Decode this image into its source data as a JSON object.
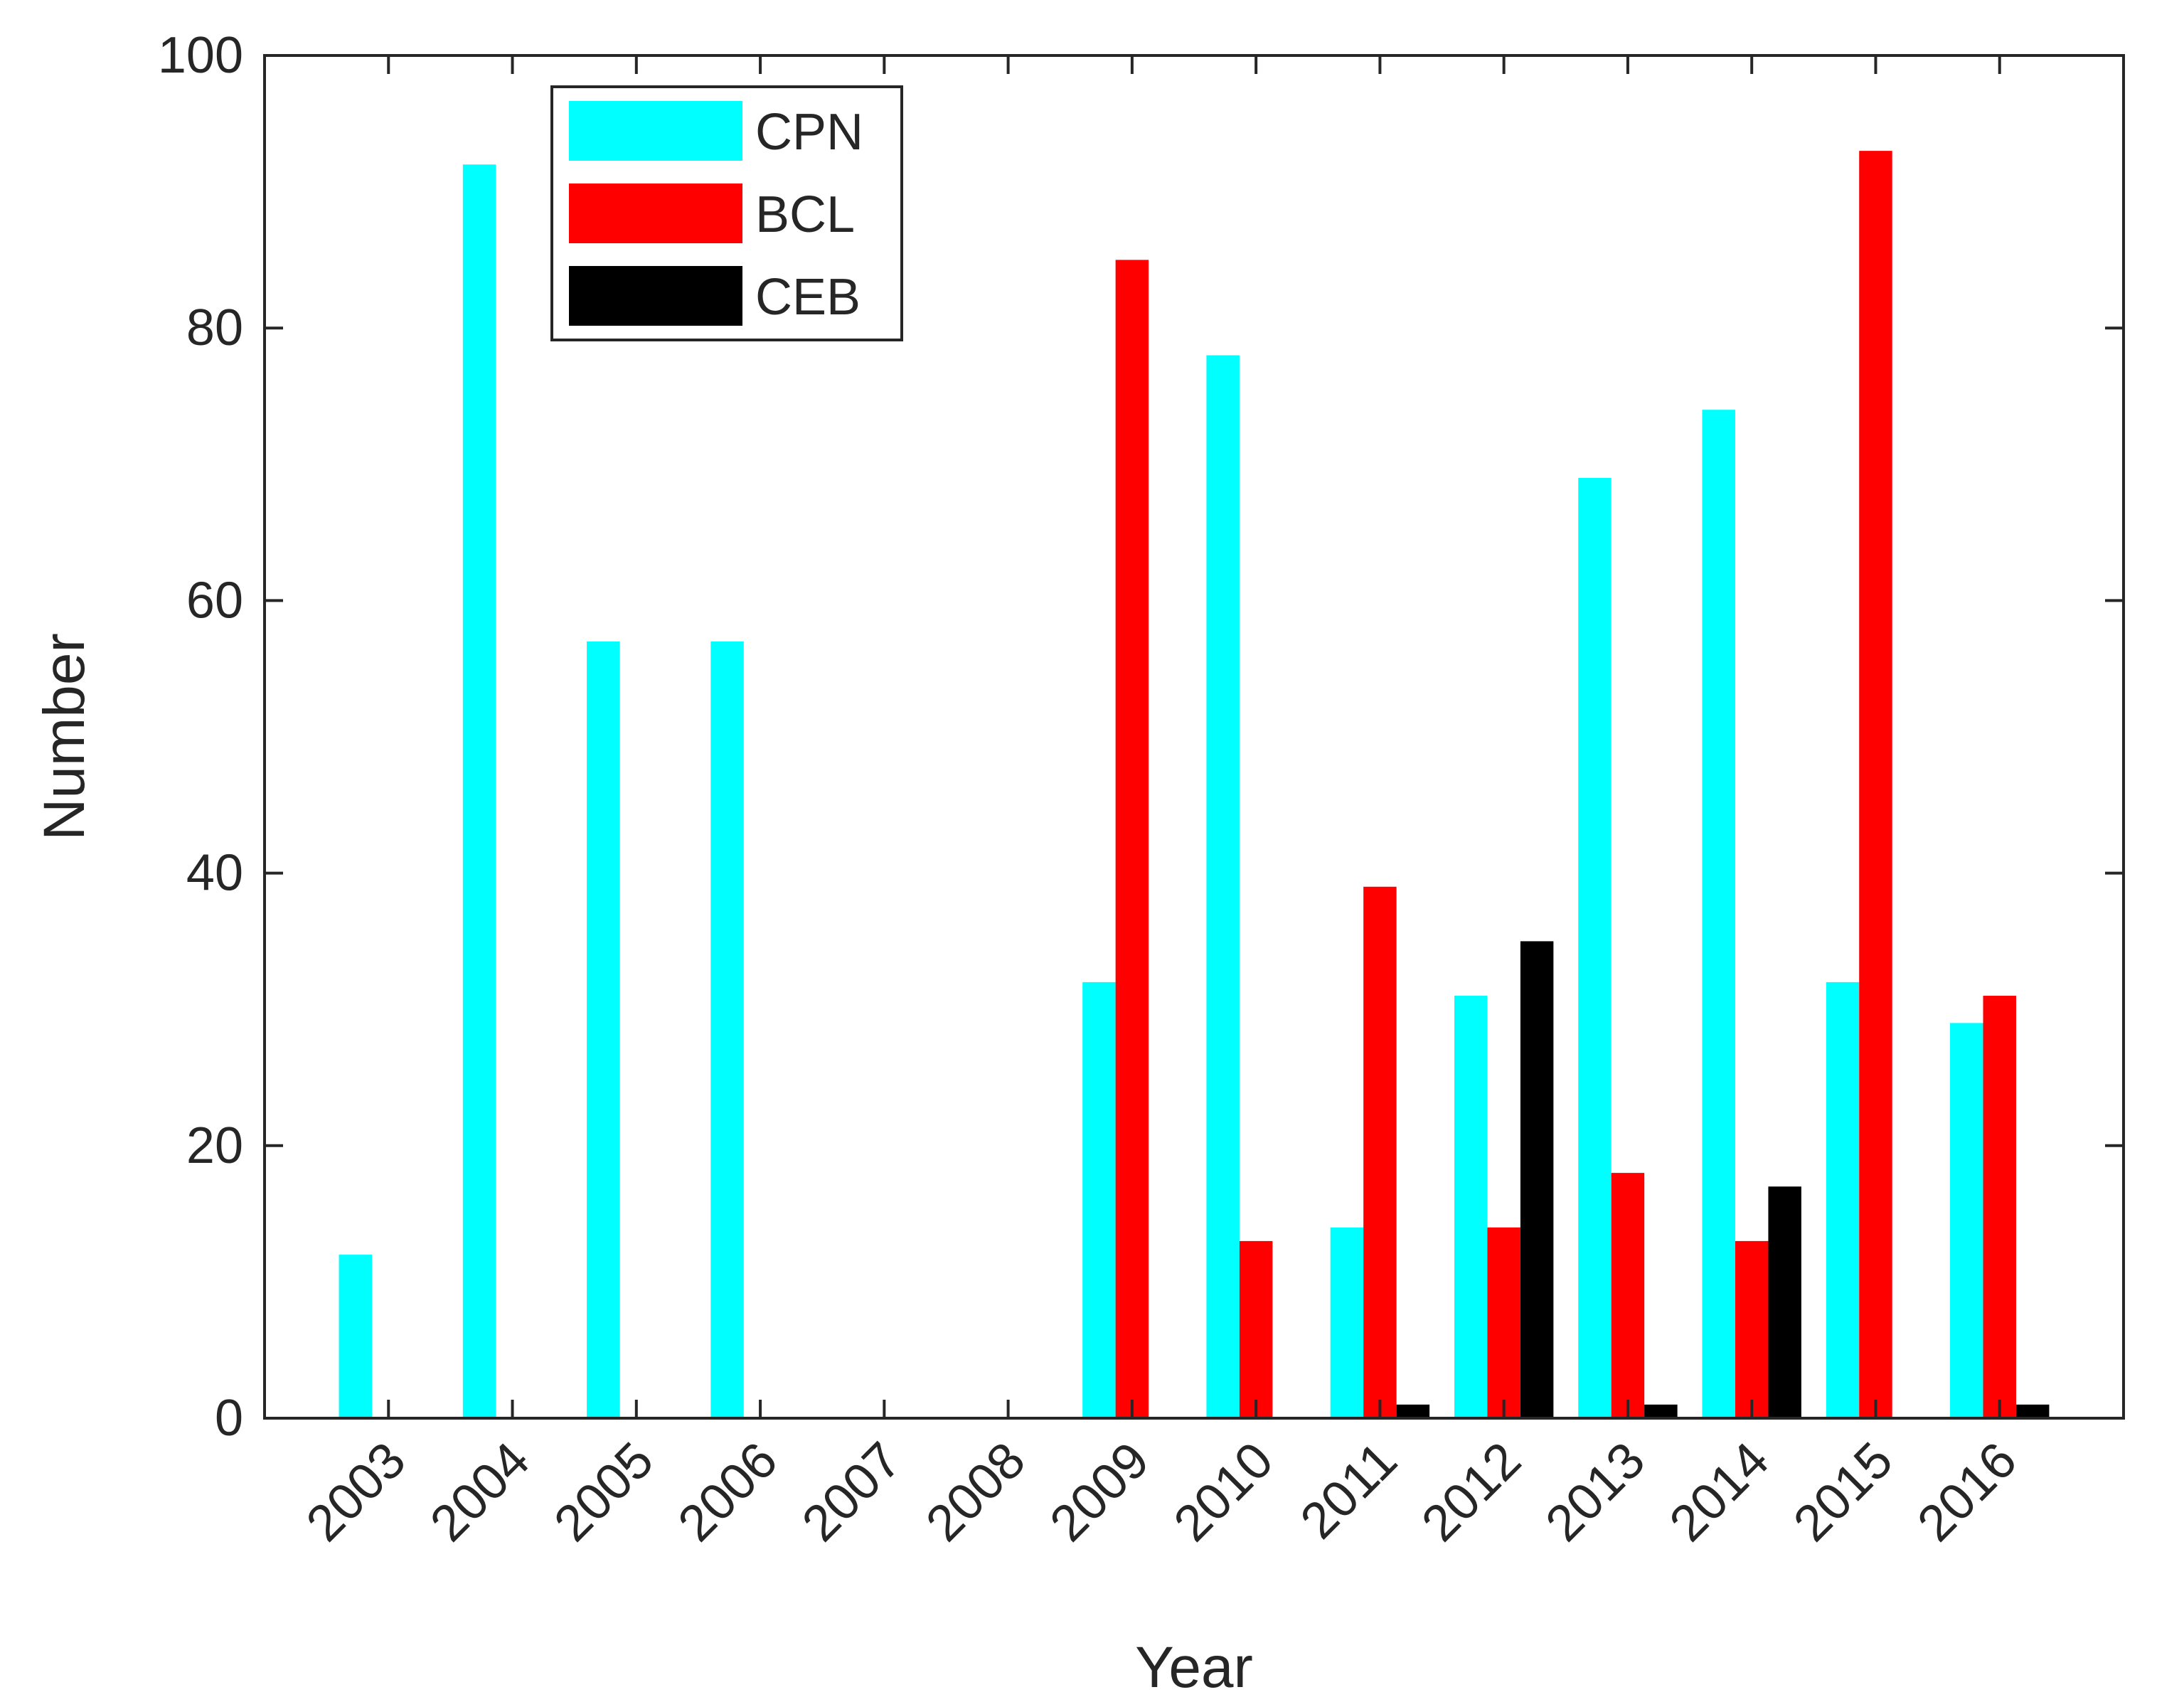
{
  "chart_data": {
    "type": "bar",
    "title": "",
    "xlabel": "Year",
    "ylabel": "Number",
    "ylim": [
      0,
      100
    ],
    "yticks": [
      0,
      20,
      40,
      60,
      80,
      100
    ],
    "grid": false,
    "legend_position": "top-left",
    "categories": [
      "2003",
      "2004",
      "2005",
      "2006",
      "2007",
      "2008",
      "2009",
      "2010",
      "2011",
      "2012",
      "2013",
      "2014",
      "2015",
      "2016"
    ],
    "series": [
      {
        "name": "CPN",
        "color": "#00ffff",
        "values": [
          12,
          92,
          57,
          57,
          0,
          0,
          32,
          78,
          14,
          31,
          69,
          74,
          32,
          29
        ]
      },
      {
        "name": "BCL",
        "color": "#ff0000",
        "values": [
          0,
          0,
          0,
          0,
          0,
          0,
          85,
          13,
          39,
          14,
          18,
          13,
          93,
          31
        ]
      },
      {
        "name": "CEB",
        "color": "#000000",
        "values": [
          0,
          0,
          0,
          0,
          0,
          0,
          0,
          0,
          1,
          35,
          1,
          17,
          0,
          1
        ]
      }
    ]
  }
}
